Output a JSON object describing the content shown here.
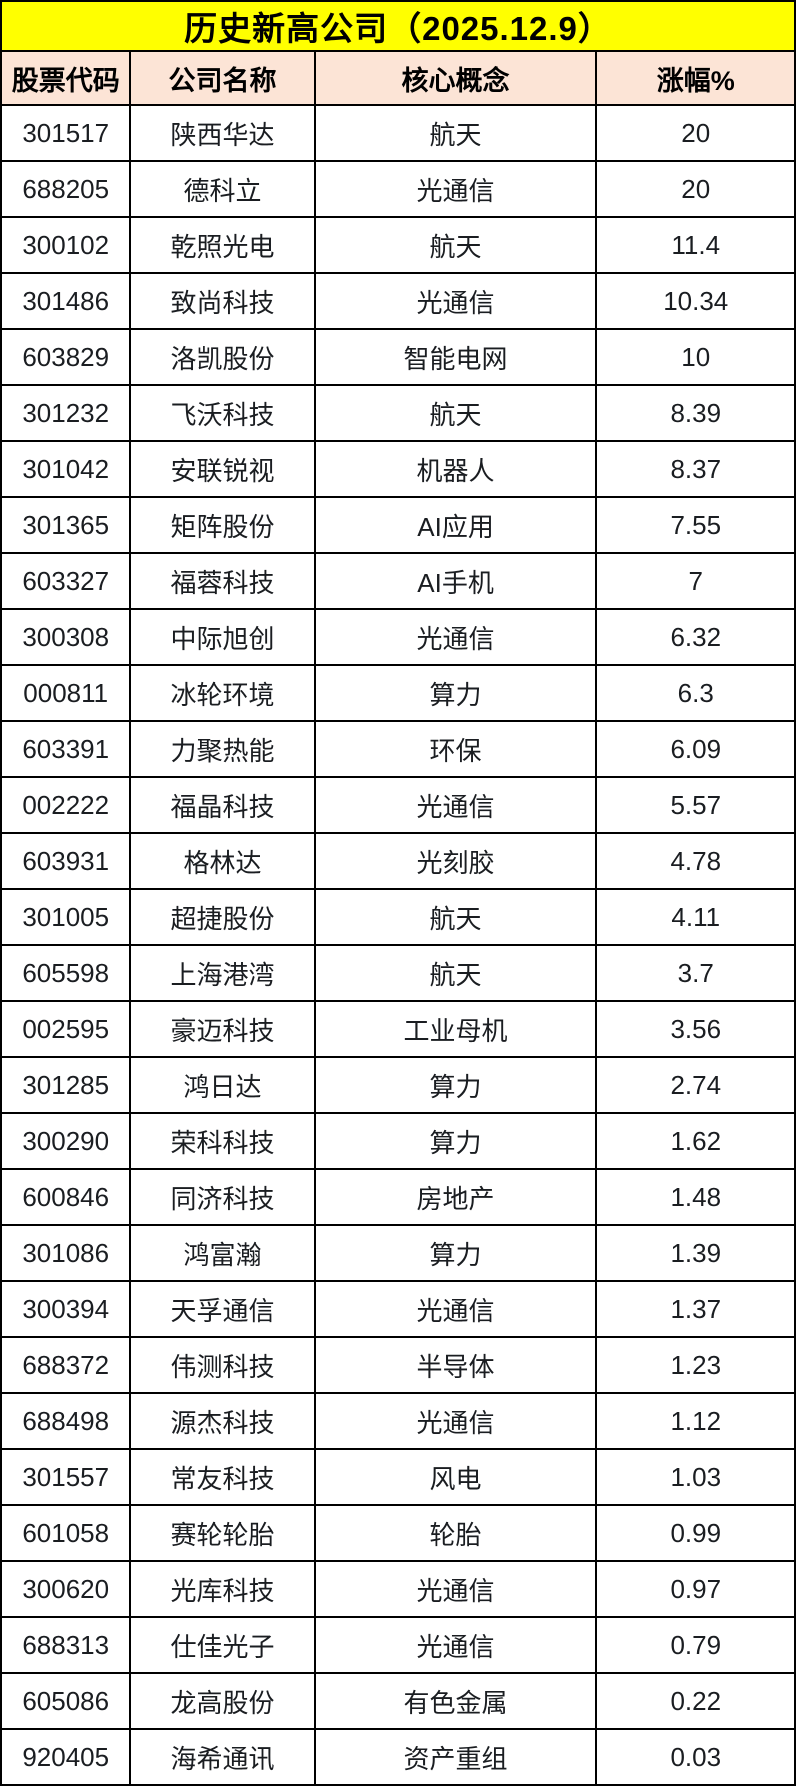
{
  "colors": {
    "title_bg": "#FFFF00",
    "header_bg": "#FCE4D6",
    "border": "#000000",
    "text": "#1A1D21"
  },
  "chart_data": {
    "type": "table",
    "title": "历史新高公司（2025.12.9）",
    "columns": [
      "股票代码",
      "公司名称",
      "核心概念",
      "涨幅%"
    ],
    "rows": [
      {
        "code": "301517",
        "name": "陕西华达",
        "concept": "航天",
        "change": "20"
      },
      {
        "code": "688205",
        "name": "德科立",
        "concept": "光通信",
        "change": "20"
      },
      {
        "code": "300102",
        "name": "乾照光电",
        "concept": "航天",
        "change": "11.4"
      },
      {
        "code": "301486",
        "name": "致尚科技",
        "concept": "光通信",
        "change": "10.34"
      },
      {
        "code": "603829",
        "name": "洛凯股份",
        "concept": "智能电网",
        "change": "10"
      },
      {
        "code": "301232",
        "name": "飞沃科技",
        "concept": "航天",
        "change": "8.39"
      },
      {
        "code": "301042",
        "name": "安联锐视",
        "concept": "机器人",
        "change": "8.37"
      },
      {
        "code": "301365",
        "name": "矩阵股份",
        "concept": "AI应用",
        "change": "7.55"
      },
      {
        "code": "603327",
        "name": "福蓉科技",
        "concept": "AI手机",
        "change": "7"
      },
      {
        "code": "300308",
        "name": "中际旭创",
        "concept": "光通信",
        "change": "6.32"
      },
      {
        "code": "000811",
        "name": "冰轮环境",
        "concept": "算力",
        "change": "6.3"
      },
      {
        "code": "603391",
        "name": "力聚热能",
        "concept": "环保",
        "change": "6.09"
      },
      {
        "code": "002222",
        "name": "福晶科技",
        "concept": "光通信",
        "change": "5.57"
      },
      {
        "code": "603931",
        "name": "格林达",
        "concept": "光刻胶",
        "change": "4.78"
      },
      {
        "code": "301005",
        "name": "超捷股份",
        "concept": "航天",
        "change": "4.11"
      },
      {
        "code": "605598",
        "name": "上海港湾",
        "concept": "航天",
        "change": "3.7"
      },
      {
        "code": "002595",
        "name": "豪迈科技",
        "concept": "工业母机",
        "change": "3.56"
      },
      {
        "code": "301285",
        "name": "鸿日达",
        "concept": "算力",
        "change": "2.74"
      },
      {
        "code": "300290",
        "name": "荣科科技",
        "concept": "算力",
        "change": "1.62"
      },
      {
        "code": "600846",
        "name": "同济科技",
        "concept": "房地产",
        "change": "1.48"
      },
      {
        "code": "301086",
        "name": "鸿富瀚",
        "concept": "算力",
        "change": "1.39"
      },
      {
        "code": "300394",
        "name": "天孚通信",
        "concept": "光通信",
        "change": "1.37"
      },
      {
        "code": "688372",
        "name": "伟测科技",
        "concept": "半导体",
        "change": "1.23"
      },
      {
        "code": "688498",
        "name": "源杰科技",
        "concept": "光通信",
        "change": "1.12"
      },
      {
        "code": "301557",
        "name": "常友科技",
        "concept": "风电",
        "change": "1.03"
      },
      {
        "code": "601058",
        "name": "赛轮轮胎",
        "concept": "轮胎",
        "change": "0.99"
      },
      {
        "code": "300620",
        "name": "光库科技",
        "concept": "光通信",
        "change": "0.97"
      },
      {
        "code": "688313",
        "name": "仕佳光子",
        "concept": "光通信",
        "change": "0.79"
      },
      {
        "code": "605086",
        "name": "龙高股份",
        "concept": "有色金属",
        "change": "0.22"
      },
      {
        "code": "920405",
        "name": "海希通讯",
        "concept": "资产重组",
        "change": "0.03"
      }
    ]
  }
}
